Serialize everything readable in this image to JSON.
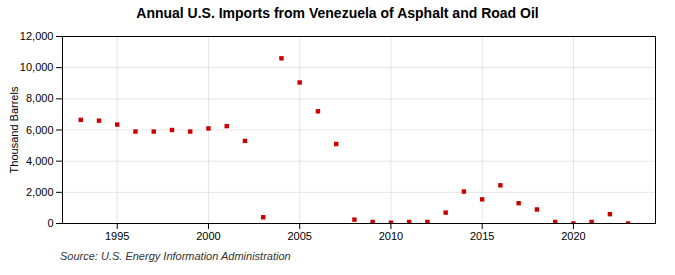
{
  "chart_data": {
    "type": "scatter",
    "title": "Annual U.S. Imports from Venezuela of Asphalt and Road Oil",
    "ylabel": "Thousand Barrels",
    "source": "Source: U.S. Energy Information Administration",
    "x": [
      1993,
      1994,
      1995,
      1996,
      1997,
      1998,
      1999,
      2000,
      2001,
      2002,
      2003,
      2004,
      2005,
      2006,
      2007,
      2008,
      2009,
      2010,
      2011,
      2012,
      2013,
      2014,
      2015,
      2016,
      2017,
      2018,
      2019,
      2020,
      2021,
      2022,
      2023
    ],
    "values": [
      6650,
      6600,
      6350,
      5900,
      5900,
      6000,
      5900,
      6100,
      6250,
      5300,
      400,
      10600,
      9050,
      7200,
      5100,
      250,
      100,
      50,
      100,
      100,
      700,
      2050,
      1550,
      2450,
      1300,
      900,
      100,
      0,
      100,
      600,
      0
    ],
    "color": "#cc0000",
    "marker": "square",
    "xlim": [
      1992.0,
      2024.5
    ],
    "xticks": [
      1995,
      2000,
      2005,
      2010,
      2015,
      2020
    ],
    "ylim": [
      0,
      12000
    ],
    "yticks": [
      0,
      {
        "value": 2000,
        "label": "2,000"
      },
      {
        "value": 4000,
        "label": "4,000"
      },
      {
        "value": 6000,
        "label": "6,000"
      },
      {
        "value": 8000,
        "label": "8,000"
      },
      {
        "value": 10000,
        "label": "10,000"
      },
      {
        "value": 12000,
        "label": "12,000"
      }
    ],
    "grid": true
  }
}
